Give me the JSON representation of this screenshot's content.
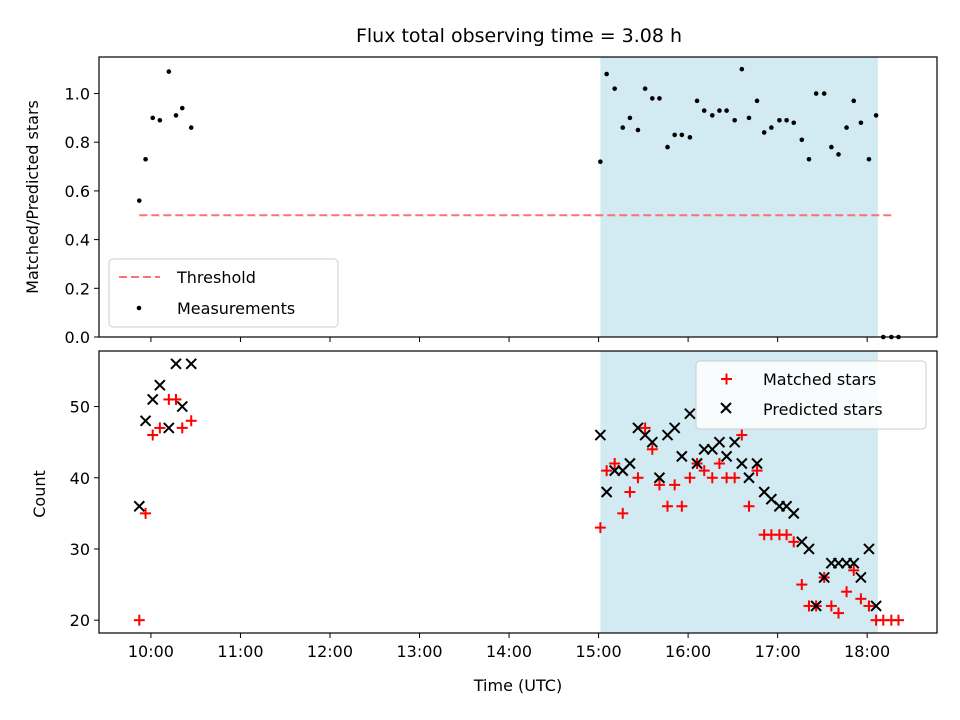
{
  "chart_data": [
    {
      "type": "scatter",
      "title": "Flux total observing time = 3.08 h",
      "xlabel": "",
      "ylabel": "Matched/Predicted stars",
      "xlim_hours": [
        9.42,
        18.78
      ],
      "ylim": [
        0.0,
        1.15
      ],
      "y_ticks": [
        0.0,
        0.2,
        0.4,
        0.6,
        0.8,
        1.0
      ],
      "y_tick_labels": [
        "0.0",
        "0.2",
        "0.4",
        "0.6",
        "0.8",
        "1.0"
      ],
      "x_ticks_hours": [
        10,
        11,
        12,
        13,
        14,
        15,
        16,
        17,
        18
      ],
      "shaded_region_hours": [
        15.02,
        18.12
      ],
      "shaded_color": "#add8e6",
      "threshold": {
        "label": "Threshold",
        "value": 0.5,
        "x_range_hours": [
          9.87,
          18.3
        ],
        "color": "#f87373"
      },
      "legend": {
        "position": "lower-left",
        "entries": [
          "Threshold",
          "Measurements"
        ]
      },
      "series": [
        {
          "name": "Measurements",
          "color": "#000000",
          "x": [
            9.87,
            9.94,
            10.02,
            10.1,
            10.2,
            10.28,
            10.35,
            10.45,
            15.02,
            15.09,
            15.18,
            15.27,
            15.35,
            15.44,
            15.52,
            15.6,
            15.68,
            15.77,
            15.85,
            15.93,
            16.02,
            16.1,
            16.18,
            16.27,
            16.35,
            16.43,
            16.52,
            16.6,
            16.68,
            16.77,
            16.85,
            16.93,
            17.02,
            17.1,
            17.18,
            17.27,
            17.35,
            17.43,
            17.52,
            17.6,
            17.68,
            17.77,
            17.85,
            17.93,
            18.02,
            18.1,
            18.18,
            18.27,
            18.35
          ],
          "y": [
            0.56,
            0.73,
            0.9,
            0.89,
            1.09,
            0.91,
            0.94,
            0.86,
            0.72,
            1.08,
            1.02,
            0.86,
            0.9,
            0.85,
            1.02,
            0.98,
            0.98,
            0.78,
            0.83,
            0.83,
            0.82,
            0.97,
            0.93,
            0.91,
            0.93,
            0.93,
            0.89,
            1.1,
            0.9,
            0.97,
            0.84,
            0.86,
            0.89,
            0.89,
            0.88,
            0.81,
            0.73,
            1.0,
            1.0,
            0.78,
            0.75,
            0.86,
            0.97,
            0.88,
            0.73,
            0.91,
            0.0,
            0.0,
            0.0
          ]
        }
      ]
    },
    {
      "type": "scatter",
      "title": "",
      "xlabel": "Time (UTC)",
      "ylabel": "Count",
      "xlim_hours": [
        9.42,
        18.78
      ],
      "ylim": [
        18.2,
        57.8
      ],
      "y_ticks": [
        20,
        30,
        40,
        50
      ],
      "y_tick_labels": [
        "20",
        "30",
        "40",
        "50"
      ],
      "x_ticks_hours": [
        10,
        11,
        12,
        13,
        14,
        15,
        16,
        17,
        18
      ],
      "x_tick_labels": [
        "10:00",
        "11:00",
        "12:00",
        "13:00",
        "14:00",
        "15:00",
        "16:00",
        "17:00",
        "18:00"
      ],
      "shaded_region_hours": [
        15.02,
        18.12
      ],
      "shaded_color": "#add8e6",
      "legend": {
        "position": "upper-right",
        "entries": [
          "Matched stars",
          "Predicted stars"
        ]
      },
      "series": [
        {
          "name": "Matched stars",
          "marker": "plus",
          "color": "#ff0000",
          "x": [
            9.87,
            9.94,
            10.02,
            10.1,
            10.2,
            10.28,
            10.35,
            10.45,
            15.02,
            15.09,
            15.18,
            15.27,
            15.35,
            15.44,
            15.52,
            15.6,
            15.68,
            15.77,
            15.85,
            15.93,
            16.02,
            16.1,
            16.18,
            16.27,
            16.35,
            16.43,
            16.52,
            16.6,
            16.68,
            16.77,
            16.85,
            16.93,
            17.02,
            17.1,
            17.18,
            17.27,
            17.35,
            17.43,
            17.52,
            17.6,
            17.68,
            17.77,
            17.85,
            17.93,
            18.02,
            18.1,
            18.18,
            18.27,
            18.35
          ],
          "y": [
            20,
            35,
            46,
            47,
            51,
            51,
            47,
            48,
            33,
            41,
            42,
            35,
            38,
            40,
            47,
            44,
            39,
            36,
            39,
            36,
            40,
            42,
            41,
            40,
            42,
            40,
            40,
            46,
            36,
            41,
            32,
            32,
            32,
            32,
            31,
            25,
            22,
            22,
            26,
            22,
            21,
            24,
            27,
            23,
            22,
            20,
            20,
            20,
            20
          ]
        },
        {
          "name": "Predicted stars",
          "marker": "x",
          "color": "#000000",
          "x": [
            9.87,
            9.94,
            10.02,
            10.1,
            10.2,
            10.28,
            10.35,
            10.45,
            15.02,
            15.09,
            15.18,
            15.27,
            15.35,
            15.44,
            15.52,
            15.6,
            15.68,
            15.77,
            15.85,
            15.93,
            16.02,
            16.1,
            16.18,
            16.27,
            16.35,
            16.43,
            16.52,
            16.6,
            16.68,
            16.77,
            16.85,
            16.93,
            17.02,
            17.1,
            17.18,
            17.27,
            17.35,
            17.43,
            17.52,
            17.6,
            17.68,
            17.77,
            17.85,
            17.93,
            18.02,
            18.1
          ],
          "y": [
            36,
            48,
            51,
            53,
            47,
            56,
            50,
            56,
            46,
            38,
            41,
            41,
            42,
            47,
            46,
            45,
            40,
            46,
            47,
            43,
            49,
            42,
            44,
            44,
            45,
            43,
            45,
            42,
            40,
            42,
            38,
            37,
            36,
            36,
            35,
            31,
            30,
            22,
            26,
            28,
            28,
            28,
            28,
            26,
            30,
            22
          ]
        }
      ]
    }
  ]
}
